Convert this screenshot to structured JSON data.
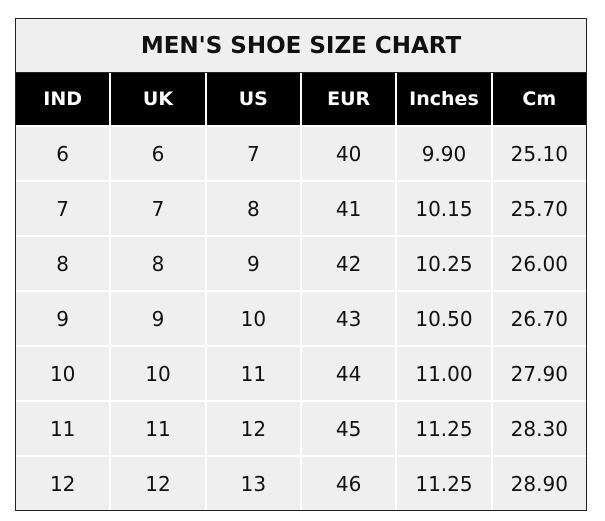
{
  "title": "MEN'S SHOE SIZE CHART",
  "columns": [
    "IND",
    "UK",
    "US",
    "EUR",
    "Inches",
    "Cm"
  ],
  "rows": [
    [
      "6",
      "6",
      "7",
      "40",
      "9.90",
      "25.10"
    ],
    [
      "7",
      "7",
      "8",
      "41",
      "10.15",
      "25.70"
    ],
    [
      "8",
      "8",
      "9",
      "42",
      "10.25",
      "26.00"
    ],
    [
      "9",
      "9",
      "10",
      "43",
      "10.50",
      "26.70"
    ],
    [
      "10",
      "10",
      "11",
      "44",
      "11.00",
      "27.90"
    ],
    [
      "11",
      "11",
      "12",
      "45",
      "11.25",
      "28.30"
    ],
    [
      "12",
      "12",
      "13",
      "46",
      "11.25",
      "28.90"
    ]
  ],
  "colors": {
    "header_bg": "#000000",
    "cell_bg": "#efefef",
    "grid": "#ffffff"
  }
}
